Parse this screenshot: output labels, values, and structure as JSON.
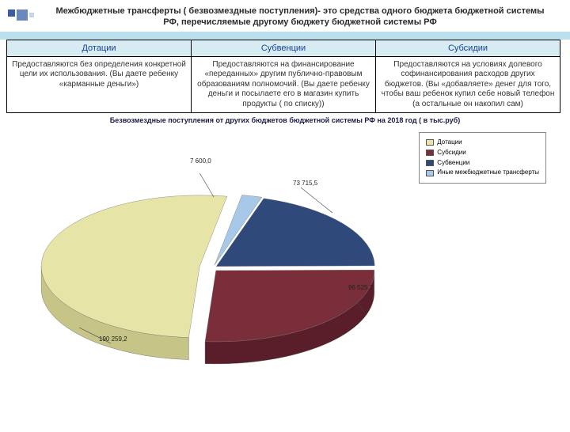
{
  "title": "Межбюджетные трансферты ( безвозмездные поступления)- это средства одного бюджета бюджетной системы РФ, перечисляемые другому бюджету бюджетной системы РФ",
  "table": {
    "headers": [
      "Дотации",
      "Субвенции",
      "Субсидии"
    ],
    "cells": [
      "Предоставляются без определения конкретной цели их использования.\n(Вы даете ребенку «карманные деньги»)",
      "Предоставляются на финансирование «переданных» другим публично-правовым образованиям полномочий.\n(Вы даете ребенку деньги и посылаете его в магазин купить продукты ( по списку))",
      "Предоставляются на условиях долевого софинансирования расходов других бюджетов. (Вы «добавляете» денег для того, чтобы ваш ребенок купил себе новый телефон (а остальные он накопил сам)"
    ]
  },
  "chart": {
    "title": "Безвозмездные поступления  от других бюджетов бюджетной системы РФ на 2018 год  ( в тыс.руб)",
    "type": "pie",
    "background_color": "#ffffff",
    "title_fontsize": 9,
    "series": [
      {
        "name": "Дотации",
        "value": 190259.2,
        "label": "190 259,2",
        "color": "#e6e4a6",
        "side": "#c6c486"
      },
      {
        "name": "Субсидии",
        "value": 96525.2,
        "label": "96 525,2",
        "color": "#7a2e3a",
        "side": "#5a1e2a"
      },
      {
        "name": "Субвенции",
        "value": 73715.5,
        "label": "73 715,5",
        "color": "#2f4a7a",
        "side": "#1f3a6a"
      },
      {
        "name": "Иные межбюджетные трансферты",
        "value": 7600.0,
        "label": "7 600,0",
        "color": "#a7c8e8",
        "side": "#87a8c8"
      }
    ],
    "legend": [
      "Дотации",
      "Субсидии",
      "Субвенции",
      "Иные межбюджетные трансферты"
    ],
    "legend_colors": [
      "#e6e4a6",
      "#7a2e3a",
      "#2f4a7a",
      "#a7c8e8"
    ]
  }
}
